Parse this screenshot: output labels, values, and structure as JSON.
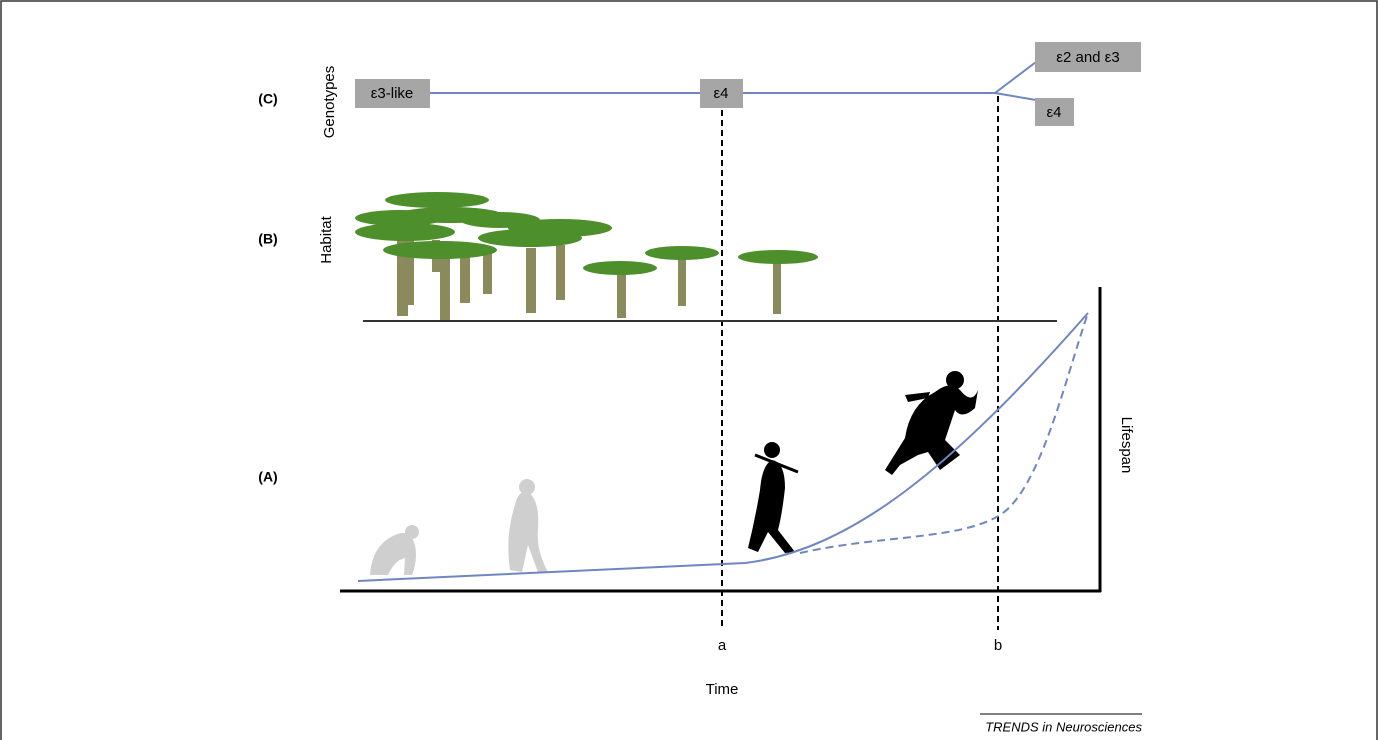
{
  "panels": {
    "c": "(C)",
    "b": "(B)",
    "a": "(A)"
  },
  "axes": {
    "genotypes": "Genotypes",
    "habitat": "Habitat",
    "lifespan": "Lifespan",
    "time": "Time"
  },
  "time_marks": {
    "a": "a",
    "b": "b"
  },
  "genotypes": {
    "early": "ε3-like",
    "middle": "ε4",
    "upper_branch": "ε2 and ε3",
    "lower_branch": "ε4"
  },
  "footer": "TRENDS in Neurosciences"
}
